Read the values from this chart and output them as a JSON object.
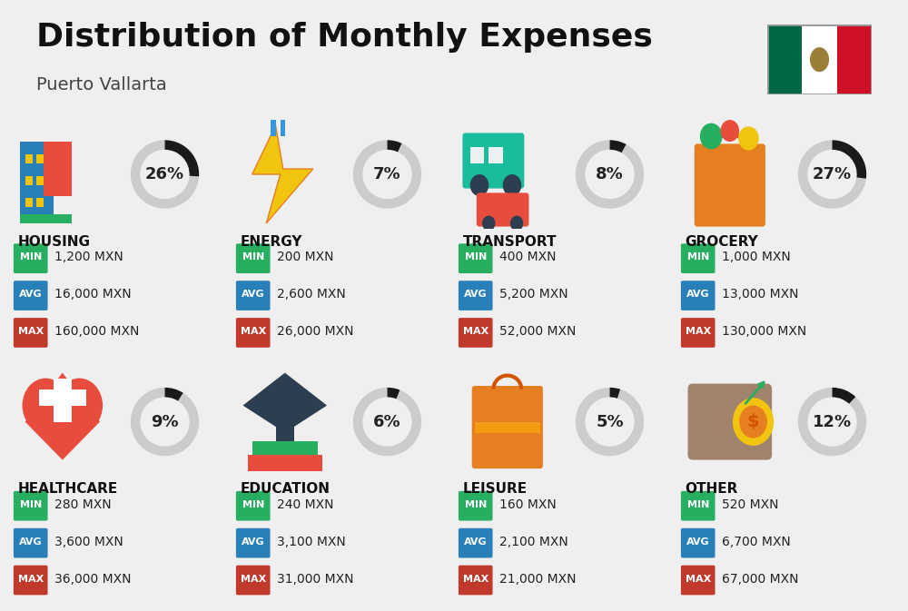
{
  "title": "Distribution of Monthly Expenses",
  "subtitle": "Puerto Vallarta",
  "background_color": "#efefef",
  "categories": [
    {
      "name": "HOUSING",
      "percent": 26,
      "min": "1,200 MXN",
      "avg": "16,000 MXN",
      "max": "160,000 MXN",
      "row": 0,
      "col": 0
    },
    {
      "name": "ENERGY",
      "percent": 7,
      "min": "200 MXN",
      "avg": "2,600 MXN",
      "max": "26,000 MXN",
      "row": 0,
      "col": 1
    },
    {
      "name": "TRANSPORT",
      "percent": 8,
      "min": "400 MXN",
      "avg": "5,200 MXN",
      "max": "52,000 MXN",
      "row": 0,
      "col": 2
    },
    {
      "name": "GROCERY",
      "percent": 27,
      "min": "1,000 MXN",
      "avg": "13,000 MXN",
      "max": "130,000 MXN",
      "row": 0,
      "col": 3
    },
    {
      "name": "HEALTHCARE",
      "percent": 9,
      "min": "280 MXN",
      "avg": "3,600 MXN",
      "max": "36,000 MXN",
      "row": 1,
      "col": 0
    },
    {
      "name": "EDUCATION",
      "percent": 6,
      "min": "240 MXN",
      "avg": "3,100 MXN",
      "max": "31,000 MXN",
      "row": 1,
      "col": 1
    },
    {
      "name": "LEISURE",
      "percent": 5,
      "min": "160 MXN",
      "avg": "2,100 MXN",
      "max": "21,000 MXN",
      "row": 1,
      "col": 2
    },
    {
      "name": "OTHER",
      "percent": 12,
      "min": "520 MXN",
      "avg": "6,700 MXN",
      "max": "67,000 MXN",
      "row": 1,
      "col": 3
    }
  ],
  "color_min": "#27ae60",
  "color_avg": "#2980b9",
  "color_max": "#c0392b",
  "donut_filled_color": "#1a1a1a",
  "donut_empty_color": "#cccccc",
  "title_fontsize": 26,
  "subtitle_fontsize": 14,
  "category_fontsize": 11,
  "value_fontsize": 10,
  "badge_fontsize": 8,
  "percent_fontsize": 13,
  "flag_green": "#006847",
  "flag_white": "#FFFFFF",
  "flag_red": "#CE1126"
}
